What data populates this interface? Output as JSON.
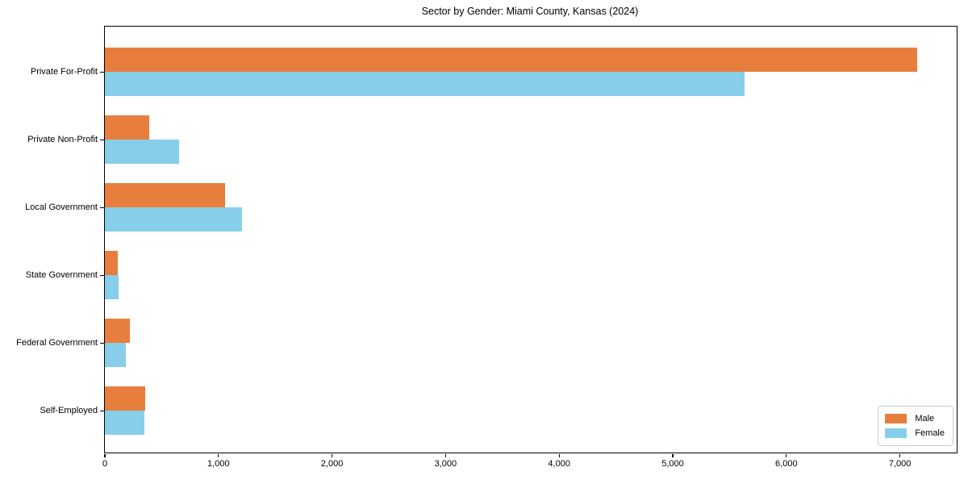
{
  "title": "Sector by Gender: Miami County, Kansas (2024)",
  "chart_data": {
    "type": "bar",
    "orientation": "horizontal",
    "title": "Sector by Gender: Miami County, Kansas (2024)",
    "categories": [
      "Private For-Profit",
      "Private Non-Profit",
      "Local Government",
      "State Government",
      "Federal Government",
      "Self-Employed"
    ],
    "series": [
      {
        "name": "Male",
        "color": "#e87e3e",
        "values": [
          7150,
          390,
          1060,
          115,
          220,
          355
        ]
      },
      {
        "name": "Female",
        "color": "#87ceeb",
        "values": [
          5630,
          650,
          1210,
          120,
          185,
          350
        ]
      }
    ],
    "xlabel": "",
    "ylabel": "",
    "xlim": [
      0,
      7500
    ],
    "xticks": [
      0,
      1000,
      2000,
      3000,
      4000,
      5000,
      6000,
      7000
    ],
    "xtick_labels": [
      "0",
      "1,000",
      "2,000",
      "3,000",
      "4,000",
      "5,000",
      "6,000",
      "7,000"
    ],
    "grid": false,
    "legend_position": "lower right"
  },
  "legend": {
    "items": [
      {
        "label": "Male",
        "color": "#e87e3e"
      },
      {
        "label": "Female",
        "color": "#87ceeb"
      }
    ]
  }
}
